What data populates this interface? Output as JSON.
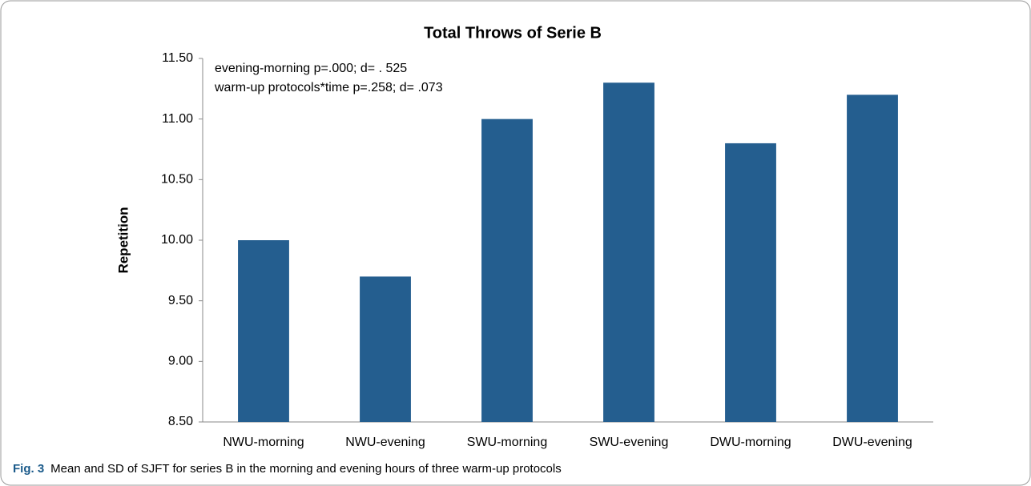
{
  "chart_data": {
    "type": "bar",
    "title": "Total Throws of Serie B",
    "ylabel": "Repetition",
    "annotations": [
      "evening-morning p=.000; d= . 525",
      "warm-up protocols*time p=.258; d=  .073"
    ],
    "categories": [
      "NWU-morning",
      "NWU-evening",
      "SWU-morning",
      "SWU-evening",
      "DWU-morning",
      "DWU-evening"
    ],
    "values": [
      10.0,
      9.7,
      11.0,
      11.3,
      10.8,
      11.2
    ],
    "color": "#245e8f",
    "ylim": [
      8.5,
      11.5
    ],
    "yticks": [
      {
        "value": 8.5,
        "label": "8.50"
      },
      {
        "value": 9,
        "label": "9.00"
      },
      {
        "value": 9.5,
        "label": "9.50"
      },
      {
        "value": 10,
        "label": "10.00"
      },
      {
        "value": 10.5,
        "label": "10.50"
      },
      {
        "value": 11,
        "label": "11.00"
      },
      {
        "value": 11.5,
        "label": "11.50"
      }
    ],
    "grid": false,
    "caption": {
      "label": "Fig. 3",
      "text": "Mean and SD of SJFT for series B in the morning and evening hours of three warm-up protocols"
    }
  }
}
